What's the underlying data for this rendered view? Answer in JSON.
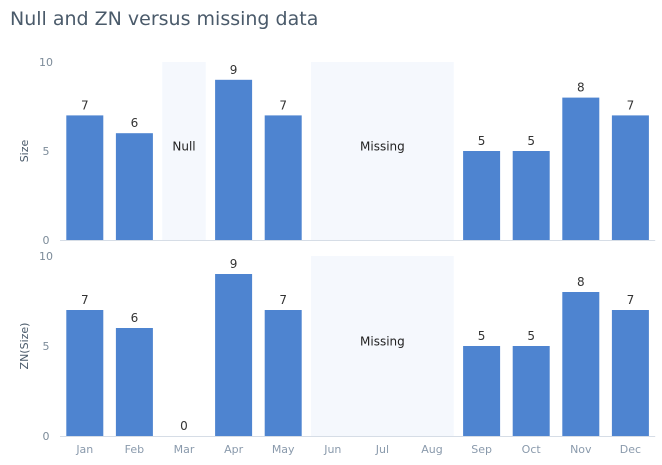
{
  "chart_data": {
    "type": "bar",
    "title": "Null and ZN versus missing data",
    "categories": [
      "Jan",
      "Feb",
      "Mar",
      "Apr",
      "May",
      "Jun",
      "Jul",
      "Aug",
      "Sep",
      "Oct",
      "Nov",
      "Dec"
    ],
    "colors": {
      "bar": "#4e84d0",
      "band": "#f5f8fd",
      "axis": "#d6dde6"
    },
    "panels": [
      {
        "ylabel": "Size",
        "ylim": [
          0,
          10
        ],
        "yticks": [
          0,
          5,
          10
        ],
        "values": [
          7,
          6,
          null,
          9,
          7,
          null,
          null,
          null,
          5,
          5,
          8,
          7
        ],
        "bands": [
          {
            "label": "Null",
            "from": "Mar",
            "to": "Mar"
          },
          {
            "label": "Missing",
            "from": "Jun",
            "to": "Aug"
          }
        ]
      },
      {
        "ylabel": "ZN(Size)",
        "ylim": [
          0,
          10
        ],
        "yticks": [
          0,
          5,
          10
        ],
        "values": [
          7,
          6,
          0,
          9,
          7,
          null,
          null,
          null,
          5,
          5,
          8,
          7
        ],
        "bands": [
          {
            "label": "Missing",
            "from": "Jun",
            "to": "Aug"
          }
        ]
      }
    ]
  }
}
